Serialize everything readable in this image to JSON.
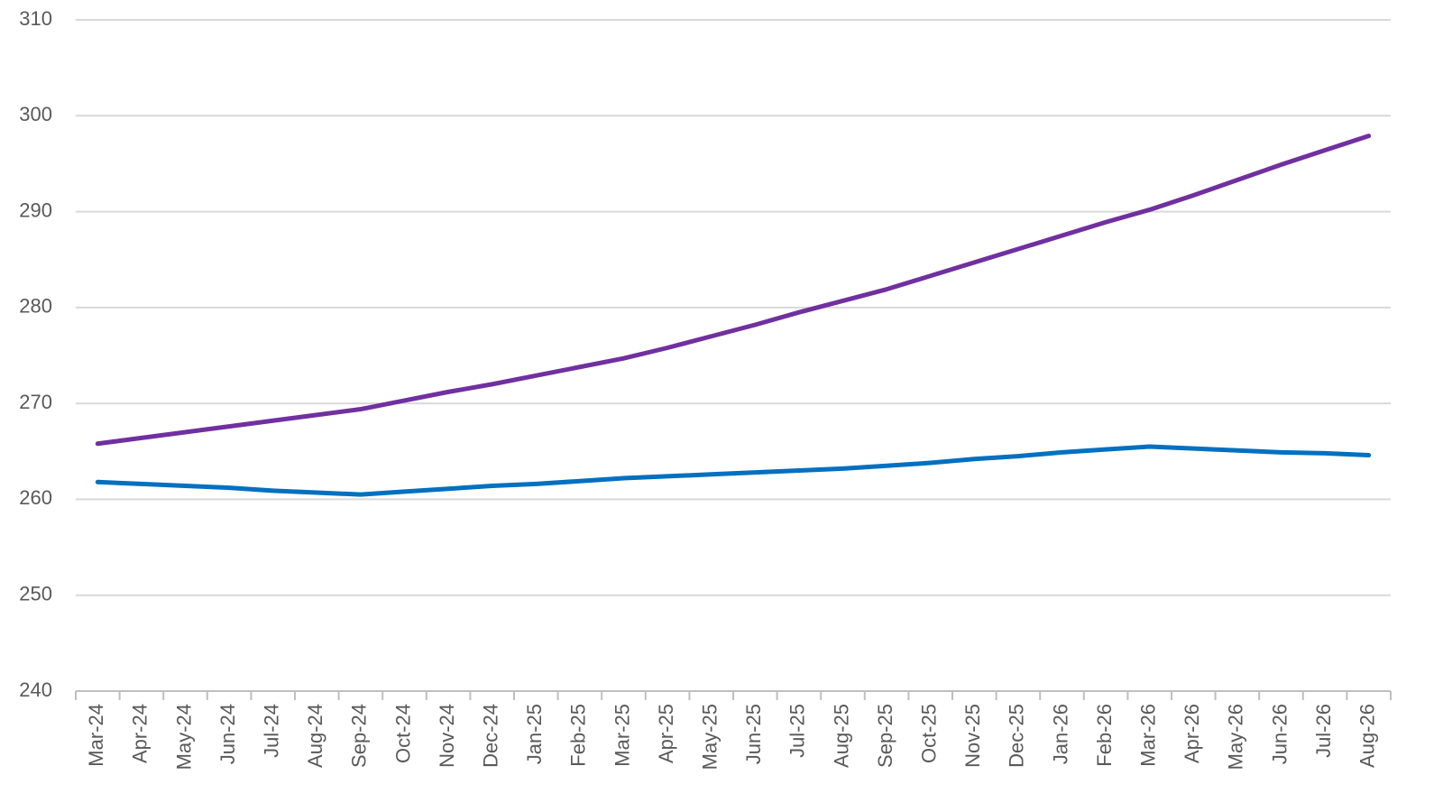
{
  "chart_data": {
    "type": "line",
    "categories": [
      "Mar-24",
      "Apr-24",
      "May-24",
      "Jun-24",
      "Jul-24",
      "Aug-24",
      "Sep-24",
      "Oct-24",
      "Nov-24",
      "Dec-24",
      "Jan-25",
      "Feb-25",
      "Mar-25",
      "Apr-25",
      "May-25",
      "Jun-25",
      "Jul-25",
      "Aug-25",
      "Sep-25",
      "Oct-25",
      "Nov-25",
      "Dec-25",
      "Jan-26",
      "Feb-26",
      "Mar-26",
      "Apr-26",
      "May-26",
      "Jun-26",
      "Jul-26",
      "Aug-26"
    ],
    "series": [
      {
        "color": "#7030a0",
        "values": [
          265.8,
          266.4,
          267.0,
          267.6,
          268.2,
          268.8,
          269.4,
          270.3,
          271.2,
          272.0,
          272.9,
          273.8,
          274.7,
          275.8,
          277.0,
          278.2,
          279.5,
          280.7,
          281.9,
          283.3,
          284.7,
          286.1,
          287.5,
          288.9,
          290.2,
          291.7,
          293.3,
          294.9,
          296.4,
          297.9
        ]
      },
      {
        "color": "#0070c0",
        "values": [
          261.8,
          261.6,
          261.4,
          261.2,
          260.9,
          260.7,
          260.5,
          260.8,
          261.1,
          261.4,
          261.6,
          261.9,
          262.2,
          262.4,
          262.6,
          262.8,
          263.0,
          263.2,
          263.5,
          263.8,
          264.2,
          264.5,
          264.9,
          265.2,
          265.5,
          265.3,
          265.1,
          264.9,
          264.8,
          264.6
        ]
      }
    ],
    "ylim": [
      240,
      310
    ],
    "yticks": [
      240,
      250,
      260,
      270,
      280,
      290,
      300,
      310
    ],
    "grid": true
  }
}
